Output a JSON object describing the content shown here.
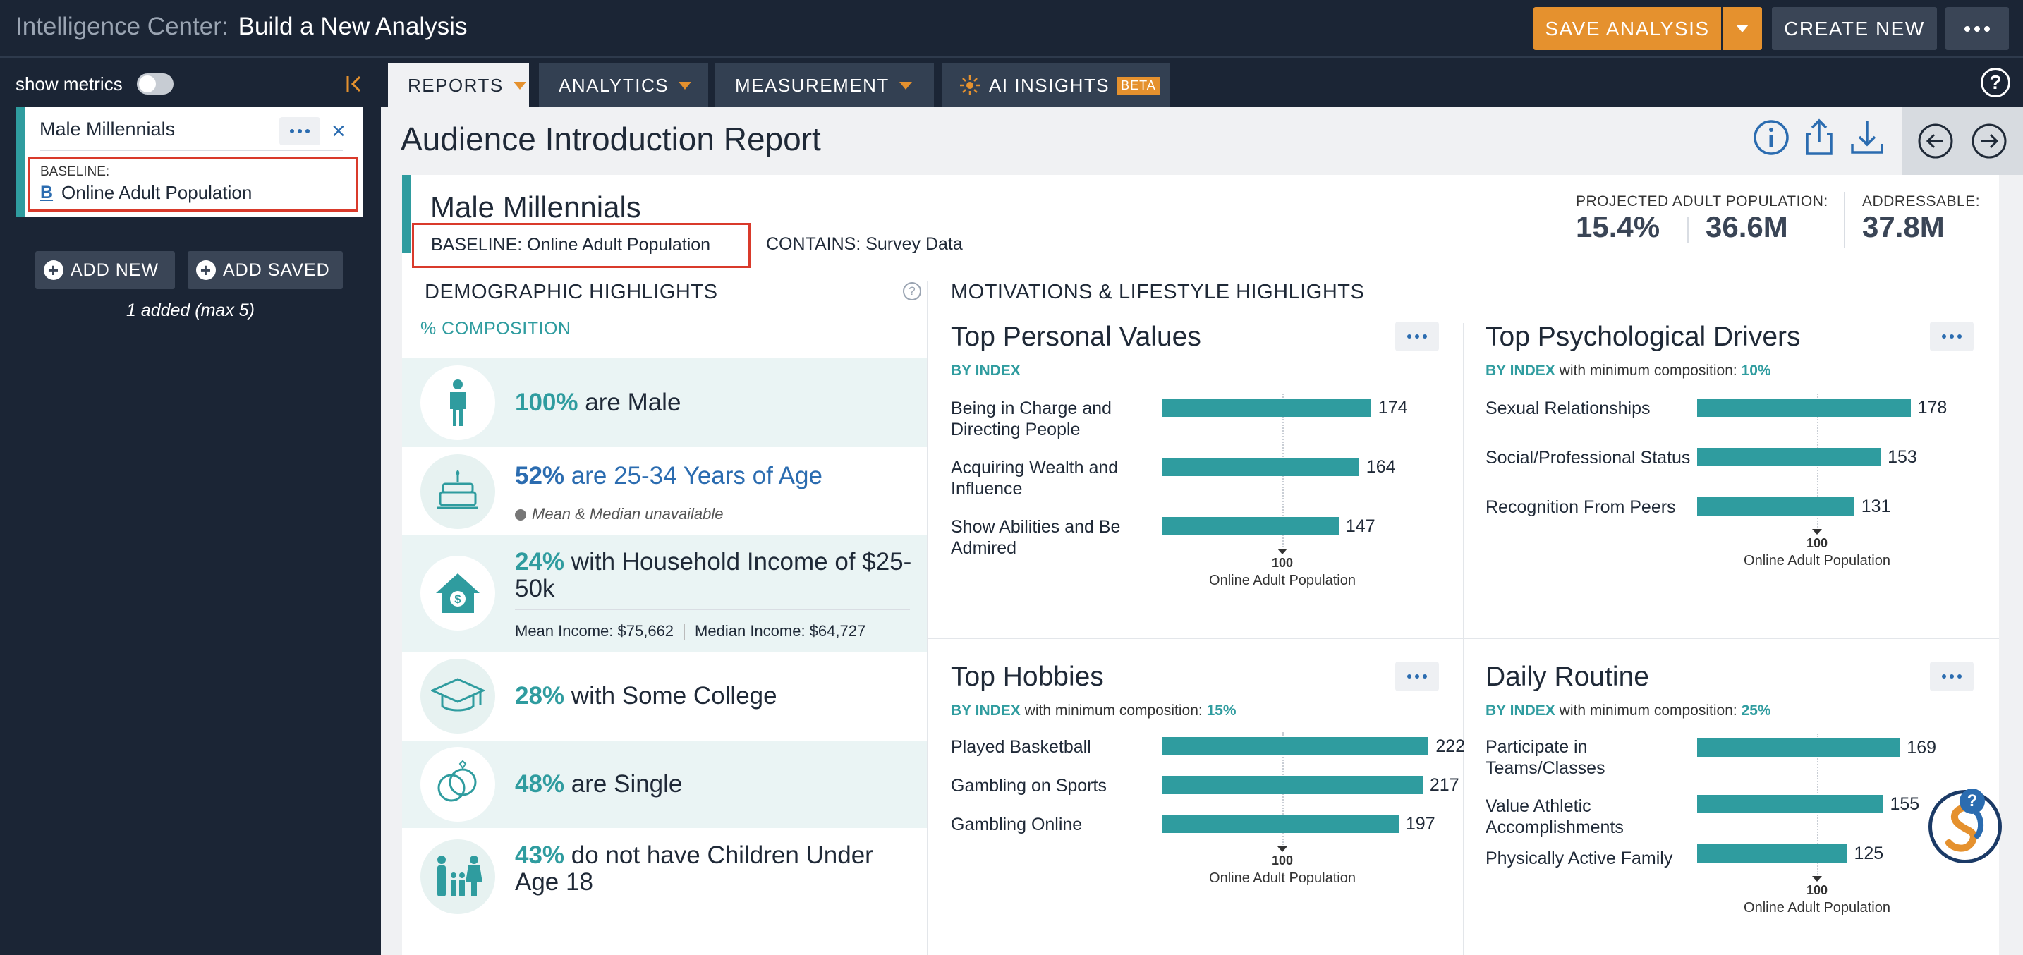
{
  "header": {
    "app_name": "Intelligence Center:",
    "page_name": "Build a New Analysis",
    "save_label": "SAVE ANALYSIS",
    "create_label": "CREATE NEW"
  },
  "sidebar": {
    "show_metrics_label": "show metrics",
    "segment": {
      "name": "Male Millennials",
      "baseline_caption": "BASELINE:",
      "baseline_badge": "B",
      "baseline_name": "Online Adult Population"
    },
    "add_new_label": "ADD NEW",
    "add_saved_label": "ADD SAVED",
    "added_note": "1 added (max 5)"
  },
  "tabs": [
    {
      "label": "REPORTS",
      "active": true
    },
    {
      "label": "ANALYTICS"
    },
    {
      "label": "MEASUREMENT"
    },
    {
      "label": "AI INSIGHTS",
      "badge": "BETA"
    }
  ],
  "report": {
    "title": "Audience Introduction Report",
    "audience_name": "Male Millennials",
    "baseline_label": "BASELINE: Online Adult Population",
    "contains_label": "CONTAINS: Survey Data",
    "stats": {
      "projected_caption": "PROJECTED ADULT POPULATION:",
      "projected_pct": "15.4%",
      "projected_count": "36.6M",
      "addressable_caption": "ADDRESSABLE:",
      "addressable_count": "37.8M"
    }
  },
  "demographics": {
    "heading": "DEMOGRAPHIC HIGHLIGHTS",
    "composition_label": "% COMPOSITION",
    "rows": [
      {
        "icon": "person-icon",
        "pct": "100%",
        "text": " are Male"
      },
      {
        "icon": "birthday-cake-icon",
        "pct": "52%",
        "text": " are 25-34 Years of Age",
        "note": "Mean & Median unavailable"
      },
      {
        "icon": "house-dollar-icon",
        "pct": "24%",
        "text": " with Household Income of $25-50k",
        "mean": "Mean Income: $75,662",
        "median": "Median Income: $64,727"
      },
      {
        "icon": "graduation-cap-icon",
        "pct": "28%",
        "text": " with Some College"
      },
      {
        "icon": "rings-icon",
        "pct": "48%",
        "text": " are Single"
      },
      {
        "icon": "family-icon",
        "pct": "43%",
        "text": " do not have Children Under Age 18"
      }
    ]
  },
  "motivations": {
    "heading": "MOTIVATIONS & LIFESTYLE HIGHLIGHTS",
    "reference_value": "100",
    "reference_label": "Online Adult Population",
    "by_index": "BY INDEX",
    "panels": [
      {
        "title": "Top Personal Values",
        "min_text": "",
        "min_value": "",
        "items": [
          {
            "label": "Being in Charge and Directing People",
            "value": 174
          },
          {
            "label": "Acquiring Wealth and Influence",
            "value": 164
          },
          {
            "label": "Show Abilities and Be Admired",
            "value": 147
          }
        ]
      },
      {
        "title": "Top Psychological Drivers",
        "min_text": " with minimum composition: ",
        "min_value": "10%",
        "items": [
          {
            "label": "Sexual Relationships",
            "value": 178
          },
          {
            "label": "Social/Professional Status",
            "value": 153
          },
          {
            "label": "Recognition From Peers",
            "value": 131
          }
        ]
      },
      {
        "title": "Top Hobbies",
        "min_text": " with minimum composition: ",
        "min_value": "15%",
        "items": [
          {
            "label": "Played Basketball",
            "value": 222
          },
          {
            "label": "Gambling on Sports",
            "value": 217
          },
          {
            "label": "Gambling Online",
            "value": 197
          }
        ]
      },
      {
        "title": "Daily Routine",
        "min_text": " with minimum composition: ",
        "min_value": "25%",
        "items": [
          {
            "label": "Participate in Teams/Classes",
            "value": 169
          },
          {
            "label": "Value Athletic Accomplishments",
            "value": 155
          },
          {
            "label": "Physically Active Family",
            "value": 125
          }
        ]
      }
    ]
  },
  "colors": {
    "accent_teal": "#2f9c9f",
    "accent_orange": "#e5912e",
    "highlight_red": "#d93a2b",
    "link_blue": "#2b6cb0",
    "nav_dark": "#1b2535"
  }
}
